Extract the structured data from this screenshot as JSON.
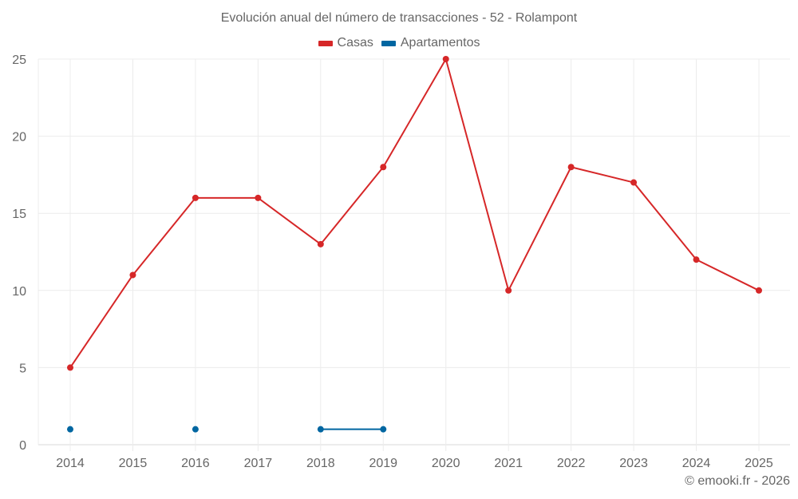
{
  "chart_data": {
    "type": "line",
    "title": "Evolución anual del número de transacciones - 52 - Rolampont",
    "xlabel": "",
    "ylabel": "",
    "categories": [
      "2014",
      "2015",
      "2016",
      "2017",
      "2018",
      "2019",
      "2020",
      "2021",
      "2022",
      "2023",
      "2024",
      "2025"
    ],
    "series": [
      {
        "name": "Casas",
        "color": "#d62728",
        "values": [
          5,
          11,
          16,
          16,
          13,
          18,
          25,
          10,
          18,
          17,
          12,
          10
        ]
      },
      {
        "name": "Apartamentos",
        "color": "#0066a1",
        "values": [
          1,
          null,
          1,
          null,
          1,
          1,
          null,
          null,
          null,
          null,
          null,
          null
        ]
      }
    ],
    "ylim": [
      0,
      25
    ],
    "yticks": [
      0,
      5,
      10,
      15,
      20,
      25
    ],
    "grid": true,
    "legend_position": "top-center"
  },
  "header": {
    "title": "Evolución anual del número de transacciones - 52 - Rolampont"
  },
  "legend": [
    {
      "label": "Casas",
      "color": "#d62728"
    },
    {
      "label": "Apartamentos",
      "color": "#0066a1"
    }
  ],
  "credit": "© emooki.fr - 2026"
}
